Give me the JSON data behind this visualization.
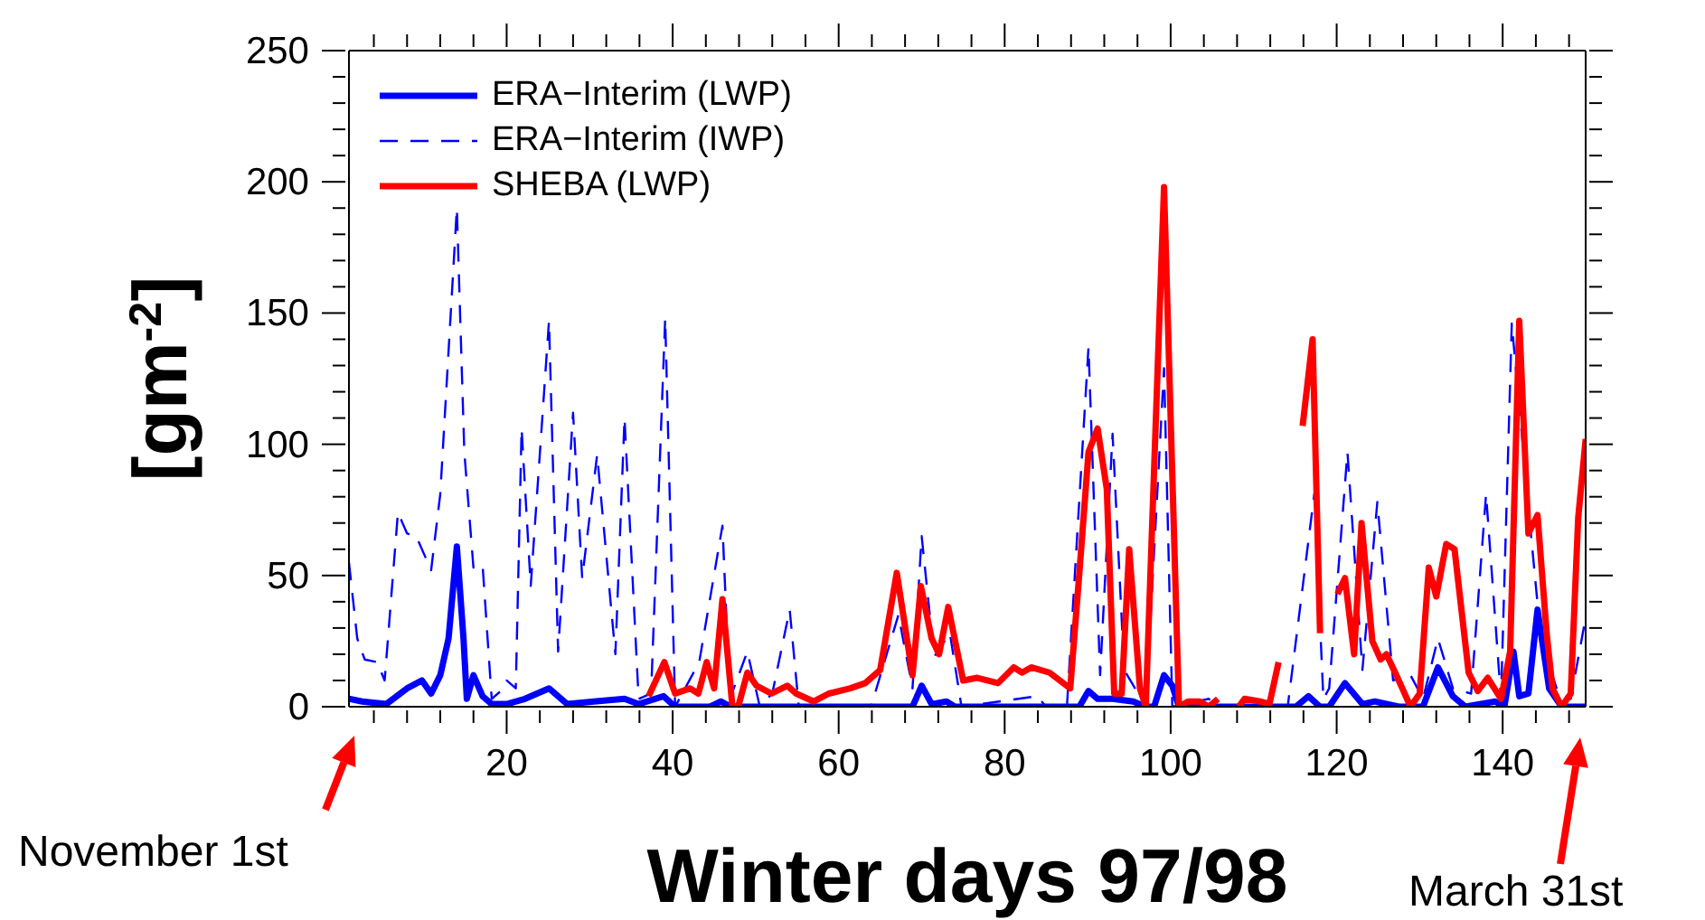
{
  "chart_data": {
    "type": "line",
    "xlabel": "Winter days 97/98",
    "ylabel": "[gm$^{-2}$]",
    "xlim": [
      1,
      150
    ],
    "ylim": [
      0,
      250
    ],
    "xticks": [
      {
        "value": 4,
        "label": null
      },
      {
        "value": 8,
        "label": null
      },
      {
        "value": 12,
        "label": null
      },
      {
        "value": 16,
        "label": null
      },
      20,
      {
        "value": 24,
        "label": null
      },
      {
        "value": 28,
        "label": null
      },
      {
        "value": 32,
        "label": null
      },
      {
        "value": 36,
        "label": null
      },
      40,
      {
        "value": 44,
        "label": null
      },
      {
        "value": 48,
        "label": null
      },
      {
        "value": 52,
        "label": null
      },
      {
        "value": 56,
        "label": null
      },
      60,
      {
        "value": 64,
        "label": null
      },
      {
        "value": 68,
        "label": null
      },
      {
        "value": 72,
        "label": null
      },
      {
        "value": 76,
        "label": null
      },
      80,
      {
        "value": 84,
        "label": null
      },
      {
        "value": 88,
        "label": null
      },
      {
        "value": 92,
        "label": null
      },
      {
        "value": 96,
        "label": null
      },
      100,
      {
        "value": 104,
        "label": null
      },
      {
        "value": 108,
        "label": null
      },
      {
        "value": 112,
        "label": null
      },
      {
        "value": 116,
        "label": null
      },
      120,
      {
        "value": 124,
        "label": null
      },
      {
        "value": 128,
        "label": null
      },
      {
        "value": 132,
        "label": null
      },
      {
        "value": 136,
        "label": null
      },
      140,
      {
        "value": 144,
        "label": null
      },
      {
        "value": 148,
        "label": null
      }
    ],
    "yticks": [
      0,
      {
        "value": 10,
        "label": null
      },
      {
        "value": 20,
        "label": null
      },
      {
        "value": 30,
        "label": null
      },
      {
        "value": 40,
        "label": null
      },
      50,
      {
        "value": 60,
        "label": null
      },
      {
        "value": 70,
        "label": null
      },
      {
        "value": 80,
        "label": null
      },
      {
        "value": 90,
        "label": null
      },
      100,
      {
        "value": 110,
        "label": null
      },
      {
        "value": 120,
        "label": null
      },
      {
        "value": 130,
        "label": null
      },
      {
        "value": 140,
        "label": null
      },
      150,
      {
        "value": 160,
        "label": null
      },
      {
        "value": 170,
        "label": null
      },
      {
        "value": 180,
        "label": null
      },
      {
        "value": 190,
        "label": null
      },
      200,
      {
        "value": 210,
        "label": null
      },
      {
        "value": 220,
        "label": null
      },
      {
        "value": 230,
        "label": null
      },
      {
        "value": 240,
        "label": null
      },
      250
    ],
    "legend": "top left",
    "marker": "none",
    "annotations": [
      "November 1st",
      "March 31st"
    ],
    "series": [
      {
        "name": "ERA−Interim (LWP)",
        "color": "#0000ff",
        "line_style": "solid",
        "x": [
          1,
          2.6,
          5.5,
          8,
          9.8,
          10.9,
          12,
          13,
          14,
          14.8,
          15.2,
          16,
          17.1,
          18.2,
          20,
          22.2,
          25.1,
          27.3,
          30.5,
          34.2,
          35.9,
          38.9,
          40.3,
          44.5,
          45.8,
          47,
          68.9,
          70,
          71.2,
          73,
          74,
          89,
          90.1,
          91.2,
          93,
          95.5,
          97,
          98,
          99.2,
          100.2,
          101,
          115.1,
          116.6,
          118,
          119.1,
          121,
          123.1,
          124.6,
          127.5,
          130.4,
          132.2,
          134,
          135.5,
          139.1,
          140.2,
          141.3,
          142,
          143.1,
          144.2,
          145.6,
          147.1,
          150
        ],
        "values": [
          3,
          2,
          1,
          7,
          10,
          5,
          12,
          26,
          61,
          26,
          3,
          12,
          4,
          1,
          1,
          3,
          7,
          1,
          2,
          3,
          1,
          4,
          0,
          0,
          2,
          0,
          0,
          8,
          1,
          2,
          0,
          0,
          6,
          3,
          3,
          2,
          0,
          0,
          12,
          8,
          0,
          0,
          4,
          0,
          0,
          9,
          1,
          2,
          0,
          0,
          15,
          4,
          0,
          2,
          0,
          21,
          4,
          5,
          37,
          7,
          0,
          0
        ]
      },
      {
        "name": "ERA−Interim (IWP)",
        "color": "#0000ff",
        "line_style": "dashed",
        "x": [
          1,
          2,
          2.9,
          4.4,
          5.3,
          6.9,
          8,
          9.1,
          10.9,
          12,
          14,
          14.9,
          16,
          17.1,
          18.2,
          19.3,
          20,
          21.1,
          21.8,
          22.9,
          25.1,
          26.2,
          28,
          29.1,
          30.9,
          33.1,
          34.2,
          35.9,
          37.4,
          39.1,
          40.3,
          43.2,
          46,
          46.9,
          49,
          50.5,
          52,
          54.1,
          55.2,
          63.9,
          67.2,
          68.9,
          70,
          71.5,
          73.4,
          74.8,
          83.9,
          85,
          87.5,
          90.1,
          91.5,
          93,
          94.4,
          97,
          99.2,
          100.2,
          104.6,
          105.5,
          114.1,
          117.3,
          118.4,
          119.1,
          121.3,
          123.1,
          124.9,
          126.8,
          128.9,
          130.4,
          132.2,
          134,
          136.2,
          138,
          139.8,
          141.1,
          143.1,
          144.6,
          146.7,
          148.2,
          150
        ],
        "values": [
          55,
          26,
          18,
          17,
          10,
          74,
          66,
          65,
          52,
          81,
          190,
          97,
          53,
          54,
          3,
          6,
          10,
          7,
          106,
          46,
          147,
          21,
          112,
          49,
          96,
          20,
          110,
          3,
          5,
          148,
          0,
          17,
          69,
          3,
          21,
          0,
          5,
          37,
          0,
          0,
          35,
          7,
          65,
          19,
          28,
          0,
          4,
          0,
          0,
          137,
          12,
          104,
          14,
          0,
          129,
          0,
          3,
          0,
          0,
          81,
          3,
          7,
          97,
          14,
          78,
          10,
          12,
          3,
          26,
          7,
          5,
          81,
          3,
          146,
          76,
          26,
          5,
          3,
          34
        ]
      },
      {
        "name": "SHEBA (LWP)",
        "color": "#ff0000",
        "line_style": "solid",
        "x": [
          37.1,
          39,
          40.3,
          42.1,
          43.1,
          44.1,
          45,
          46,
          47.2,
          47.9,
          49,
          50.1,
          51.9,
          53.8,
          54.9,
          57,
          58.8,
          61.4,
          63.2,
          65,
          67,
          68.9,
          69.9,
          71.2,
          72.1,
          73.2,
          75,
          76.7,
          79.2,
          81.1,
          82.1,
          83.2,
          85.4,
          87.9,
          89,
          90.1,
          91.2,
          92.3,
          93.2,
          94.1,
          95,
          96.3,
          97,
          99.2,
          101,
          102.1,
          103.5,
          104.6,
          105.7,
          107,
          108.2,
          108.9,
          110.8,
          111.9,
          113,
          114.5,
          115.9,
          117.1,
          118,
          119,
          120.1,
          121,
          122.1,
          123,
          124.3,
          125.3,
          126,
          127.2,
          128.9,
          130,
          131.1,
          132,
          133.2,
          134.2,
          135.9,
          137,
          138.2,
          139.8,
          140.9,
          142,
          143.1,
          144.2,
          145.3,
          146,
          147.1,
          148.2,
          149.1,
          150
        ],
        "values": [
          4,
          17,
          5,
          7,
          5,
          17,
          7,
          41,
          0,
          0,
          13,
          8,
          5,
          8,
          5,
          2,
          5,
          7,
          9,
          14,
          51,
          12,
          46,
          26,
          20,
          38,
          10,
          11,
          9,
          15,
          13,
          15,
          13,
          7,
          51,
          97,
          106,
          83,
          5,
          5,
          60,
          7,
          0,
          198,
          0,
          2,
          2,
          0,
          3,
          null,
          0,
          3,
          2,
          1,
          17,
          null,
          107,
          140,
          28,
          null,
          43,
          49,
          20,
          70,
          25,
          18,
          20,
          12,
          0,
          5,
          53,
          42,
          62,
          60,
          13,
          6,
          11,
          3,
          21,
          147,
          66,
          73,
          28,
          7,
          0,
          5,
          72,
          102
        ]
      }
    ]
  }
}
